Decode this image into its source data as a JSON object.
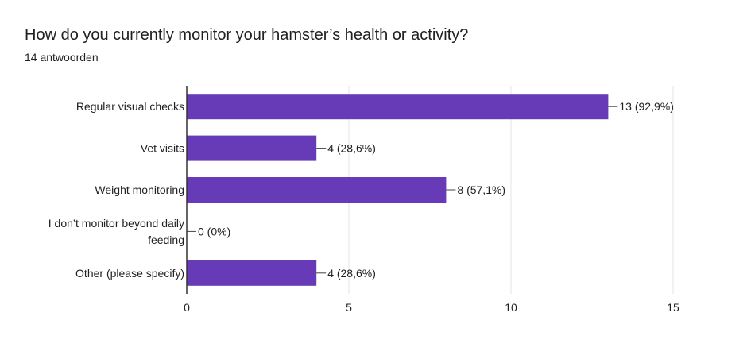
{
  "title": "How do you currently monitor your hamster’s health or activity?",
  "subtitle": "14 antwoorden",
  "chart_data": {
    "type": "bar",
    "orientation": "horizontal",
    "categories": [
      [
        "Regular visual checks"
      ],
      [
        "Vet visits"
      ],
      [
        "Weight monitoring"
      ],
      [
        "I don’t monitor beyond daily",
        "feeding"
      ],
      [
        "Other (please specify)"
      ]
    ],
    "values": [
      13,
      4,
      8,
      0,
      4
    ],
    "data_labels": [
      "13 (92,9%)",
      "4 (28,6%)",
      "8 (57,1%)",
      "0 (0%)",
      "4 (28,6%)"
    ],
    "xlim": [
      0,
      15
    ],
    "xticks": [
      0,
      5,
      10,
      15
    ],
    "grid": true,
    "legend": "none",
    "bar_color": "#673ab7",
    "gridline_color": "#e6e6e6",
    "axis_color": "#333333"
  }
}
